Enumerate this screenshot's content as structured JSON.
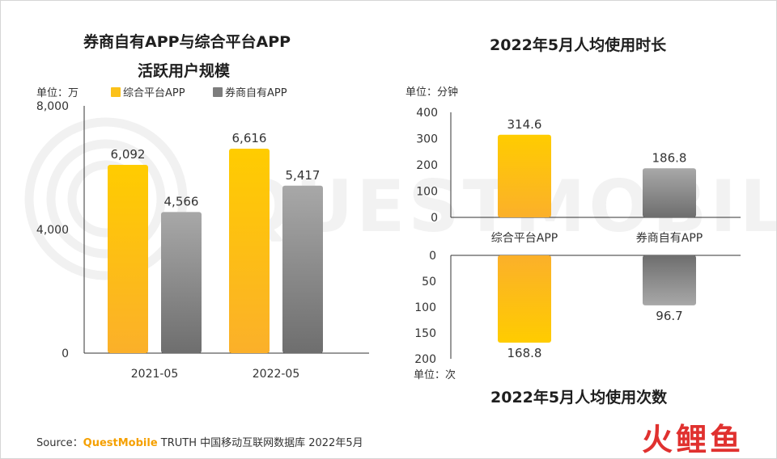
{
  "left_chart": {
    "title_line1": "券商自有APP与综合平台APP",
    "title_line2": "活跃用户规模",
    "unit": "单位：万"
  },
  "right_chart": {
    "title_top": "2022年5月人均使用时长",
    "unit_top": "单位：分钟",
    "title_bottom": "2022年5月人均使用次数",
    "unit_bottom": "单位：次"
  },
  "colors": {
    "gold_top": "#ffcc00",
    "gold_bottom": "#fbb02a",
    "gray_top": "#a8a8a8",
    "gray_bottom": "#6e6e6e",
    "axis": "#333333"
  },
  "chart_data": [
    {
      "type": "bar",
      "title": "券商自有APP与综合平台APP 活跃用户规模",
      "ylabel": "单位：万",
      "categories": [
        "2021-05",
        "2022-05"
      ],
      "series": [
        {
          "name": "综合平台APP",
          "values": [
            6092,
            6616
          ],
          "labels": [
            "6,092",
            "6,616"
          ]
        },
        {
          "name": "券商自有APP",
          "values": [
            4566,
            5417
          ],
          "labels": [
            "4,566",
            "5,417"
          ]
        }
      ],
      "ylim": [
        0,
        8000
      ],
      "yticks": [
        "0",
        "4,000",
        "8,000"
      ],
      "legend": "top"
    },
    {
      "type": "bar",
      "title": "2022年5月人均使用时长",
      "ylabel": "单位：分钟",
      "categories": [
        "综合平台APP",
        "券商自有APP"
      ],
      "values": [
        314.6,
        186.8
      ],
      "labels": [
        "314.6",
        "186.8"
      ],
      "ylim": [
        0,
        400
      ],
      "yticks": [
        "0",
        "100",
        "200",
        "300",
        "400"
      ]
    },
    {
      "type": "bar",
      "title": "2022年5月人均使用次数",
      "ylabel": "单位：次",
      "orientation": "downward",
      "categories": [
        "综合平台APP",
        "券商自有APP"
      ],
      "values": [
        168.8,
        96.7
      ],
      "labels": [
        "168.8",
        "96.7"
      ],
      "ylim": [
        0,
        200
      ],
      "yticks": [
        "0",
        "50",
        "100",
        "150",
        "200"
      ]
    }
  ],
  "source": {
    "prefix": "Source：",
    "brand": "QuestMobile",
    "rest": " TRUTH 中国移动互联网数据库 2022年5月"
  },
  "watermark_text": "QUESTMOBILE",
  "logo": {
    "text": "火鲤鱼",
    "color": "#e0312f"
  }
}
